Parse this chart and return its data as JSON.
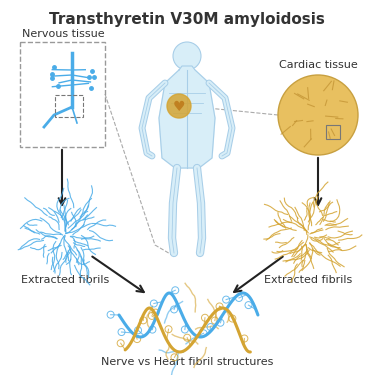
{
  "title": "Transthyretin V30M amyloidosis",
  "title_fontsize": 11,
  "title_fontweight": "bold",
  "label_nervous_tissue": "Nervous tissue",
  "label_cardiac_tissue": "Cardiac tissue",
  "label_extracted_fibrils_left": "Extracted fibrils",
  "label_extracted_fibrils_right": "Extracted fibrils",
  "label_bottom": "Nerve vs Heart fibril structures",
  "label_fontsize": 8,
  "color_blue": "#4AACE8",
  "color_gold": "#D4A432",
  "color_body": "#C8E0F0",
  "color_body_outline": "#A0C8E0",
  "color_heart": "#D4A432",
  "color_nerve_box": "#AAAAAA",
  "color_arrow": "#222222",
  "background": "#FFFFFF"
}
